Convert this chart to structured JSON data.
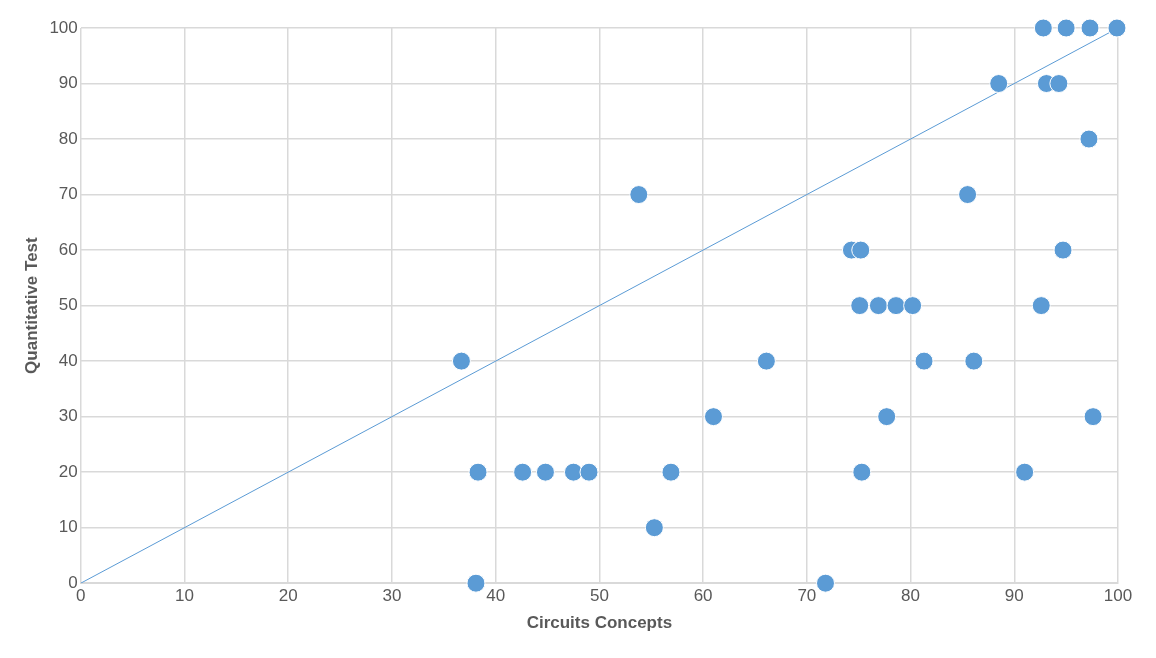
{
  "chart_data": {
    "type": "scatter",
    "xlabel": "Circuits Concepts",
    "ylabel": "Quantitative Test",
    "xlim": [
      0,
      100
    ],
    "ylim": [
      0,
      100
    ],
    "xticks": [
      0,
      10,
      20,
      30,
      40,
      50,
      60,
      70,
      80,
      90,
      100
    ],
    "yticks": [
      0,
      10,
      20,
      30,
      40,
      50,
      60,
      70,
      80,
      90,
      100
    ],
    "grid": true,
    "legend": false,
    "marker": "circle",
    "series": [
      {
        "color": "#5b9bd5",
        "x": [
          36.7,
          38.3,
          38.1,
          42.6,
          44.8,
          47.5,
          49.0,
          53.8,
          55.3,
          56.9,
          61.0,
          66.1,
          71.8,
          74.3,
          75.2,
          75.1,
          75.3,
          76.9,
          77.7,
          78.6,
          80.2,
          81.3,
          85.5,
          86.1,
          88.5,
          91.0,
          92.6,
          92.8,
          93.1,
          94.3,
          94.7,
          95.0,
          97.2,
          97.3,
          97.6,
          99.9
        ],
        "values": [
          40,
          20,
          0,
          20,
          20,
          20,
          20,
          70,
          10,
          20,
          30,
          40,
          0,
          60,
          60,
          50,
          20,
          50,
          30,
          50,
          50,
          40,
          70,
          40,
          90,
          20,
          50,
          100,
          90,
          90,
          60,
          100,
          80,
          100,
          30,
          100
        ]
      },
      {
        "type": "line",
        "color": "#5b9bd5",
        "marker": "none",
        "line_style": "solid",
        "x": [
          0,
          100
        ],
        "values": [
          0,
          100
        ]
      }
    ]
  }
}
